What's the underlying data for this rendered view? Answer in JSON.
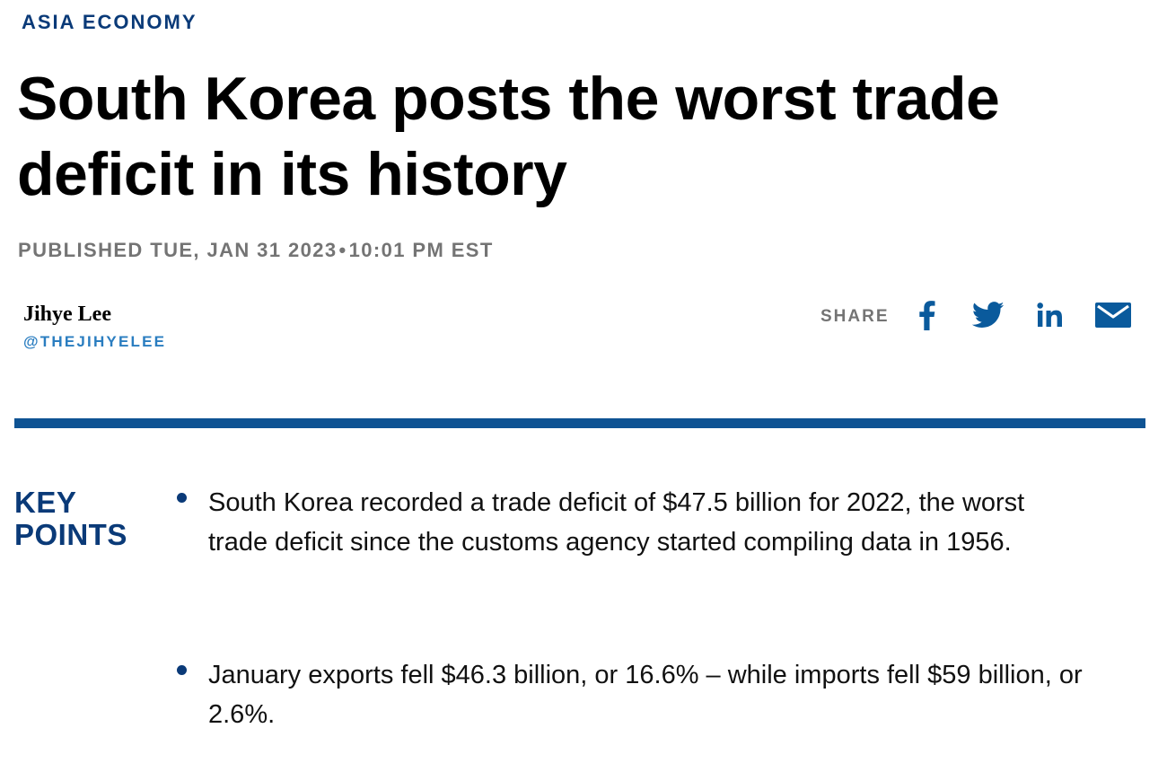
{
  "article": {
    "section": "ASIA ECONOMY",
    "headline": "South Korea posts the worst trade deficit in its history",
    "published": {
      "prefix": "PUBLISHED TUE, JAN 31 2023",
      "separator": "•",
      "time": "10:01 PM EST"
    },
    "author": {
      "name": "Jihye Lee",
      "handle": "@THEJIHYELEE"
    }
  },
  "share": {
    "label": "SHARE",
    "icons": [
      "facebook-icon",
      "twitter-icon",
      "linkedin-icon",
      "email-icon"
    ]
  },
  "key_points": {
    "heading_line1": "KEY",
    "heading_line2": "POINTS",
    "items": [
      "South Korea recorded a trade deficit of $47.5 billion for 2022, the worst trade deficit since the customs agency started compiling data in 1956.",
      "January exports fell $46.3 billion, or 16.6% – while imports fell $59 billion, or 2.6%."
    ]
  },
  "colors": {
    "brand_navy": "#0a3a78",
    "rule_blue": "#0e5393",
    "handle_blue": "#2a7dc0",
    "meta_gray": "#747474"
  }
}
